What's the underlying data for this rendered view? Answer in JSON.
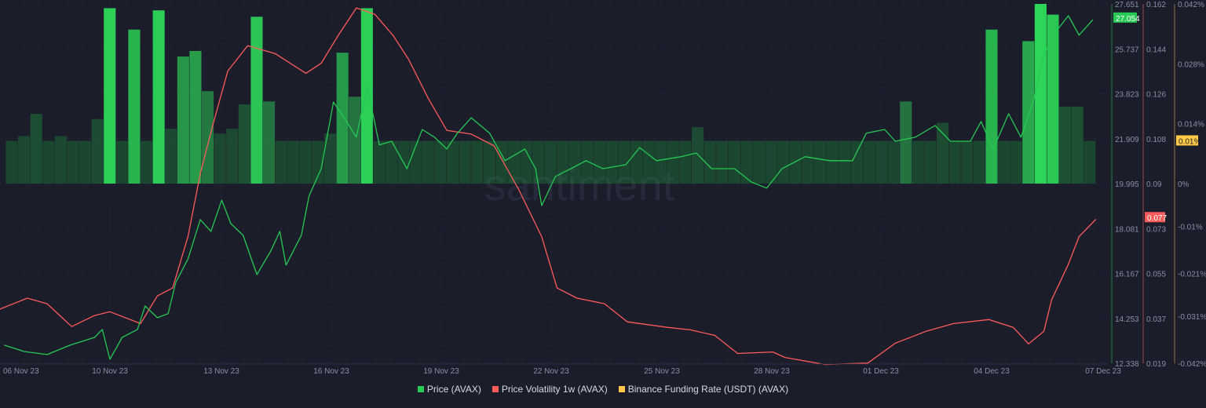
{
  "chart_data": {
    "type": "line",
    "title": "",
    "watermark": "santiment",
    "grid": true,
    "legend_placement": "bottom",
    "x_ticks": [
      "06 Nov 23",
      "10 Nov 23",
      "13 Nov 23",
      "16 Nov 23",
      "19 Nov 23",
      "22 Nov 23",
      "25 Nov 23",
      "28 Nov 23",
      "01 Dec 23",
      "04 Dec 23",
      "07 Dec 23"
    ],
    "axes": {
      "price": {
        "ticks": [
          "27.651",
          "25.737",
          "23.823",
          "21.909",
          "19.995",
          "18.081",
          "16.167",
          "14.253",
          "12.338"
        ],
        "range": [
          12.338,
          27.651
        ],
        "current_label": "27.054",
        "color": "#26c953"
      },
      "volatility": {
        "ticks": [
          "0.162",
          "0.144",
          "0.126",
          "0.108",
          "0.09",
          "0.073",
          "0.055",
          "0.037",
          "0.019"
        ],
        "range": [
          0.019,
          0.162
        ],
        "current_label": "0.077",
        "color": "#ff5b5b"
      },
      "funding": {
        "ticks": [
          [
            "0.042%",
            0.042
          ],
          [
            "0.028%",
            0.028
          ],
          [
            "0.014%",
            0.014
          ],
          [
            "0%",
            0
          ],
          [
            "-0.01%",
            -0.01
          ],
          [
            "-0.021%",
            -0.021
          ],
          [
            "-0.031%",
            -0.031
          ],
          [
            "-0.042%",
            -0.042
          ]
        ],
        "range": [
          -0.042,
          0.042
        ],
        "current_label": "0.01%",
        "color": "#ffcb47"
      }
    },
    "series": [
      {
        "name": "Price (AVAX)",
        "type": "line",
        "axis": "price",
        "color": "#26c953",
        "points": [
          [
            "2023-11-07T03:00",
            13.11
          ],
          [
            "2023-11-07T16:00",
            12.84
          ],
          [
            "2023-11-08T07:00",
            12.71
          ],
          [
            "2023-11-08T22:00",
            13.11
          ],
          [
            "2023-11-09T14:00",
            13.44
          ],
          [
            "2023-11-09T19:00",
            13.78
          ],
          [
            "2023-11-10T00:00",
            12.51
          ],
          [
            "2023-11-10T08:00",
            13.44
          ],
          [
            "2023-11-10T18:00",
            13.78
          ],
          [
            "2023-11-10T23:00",
            14.78
          ],
          [
            "2023-11-11T07:00",
            14.28
          ],
          [
            "2023-11-11T14:00",
            14.45
          ],
          [
            "2023-11-11T19:00",
            15.78
          ],
          [
            "2023-11-12T03:00",
            16.78
          ],
          [
            "2023-11-12T11:00",
            18.46
          ],
          [
            "2023-11-12T18:00",
            17.96
          ],
          [
            "2023-11-13T01:00",
            19.29
          ],
          [
            "2023-11-13T07:00",
            18.29
          ],
          [
            "2023-11-13T15:00",
            17.79
          ],
          [
            "2023-11-14T00:00",
            16.12
          ],
          [
            "2023-11-14T09:00",
            17.12
          ],
          [
            "2023-11-14T15:00",
            17.96
          ],
          [
            "2023-11-14T19:00",
            16.52
          ],
          [
            "2023-11-15T05:00",
            17.79
          ],
          [
            "2023-11-15T10:00",
            19.46
          ],
          [
            "2023-11-15T18:00",
            20.63
          ],
          [
            "2023-11-16T02:00",
            23.47
          ],
          [
            "2023-11-16T09:00",
            22.8
          ],
          [
            "2023-11-16T17:00",
            21.97
          ],
          [
            "2023-11-17T00:00",
            24.14
          ],
          [
            "2023-11-17T08:00",
            21.64
          ],
          [
            "2023-11-17T16:00",
            21.8
          ],
          [
            "2023-11-18T02:00",
            20.63
          ],
          [
            "2023-11-18T12:00",
            22.3
          ],
          [
            "2023-11-18T20:00",
            21.97
          ],
          [
            "2023-11-19T04:00",
            21.47
          ],
          [
            "2023-11-19T11:00",
            22.14
          ],
          [
            "2023-11-19T20:00",
            22.8
          ],
          [
            "2023-11-20T08:00",
            22.14
          ],
          [
            "2023-11-20T18:00",
            20.97
          ],
          [
            "2023-11-21T07:00",
            21.47
          ],
          [
            "2023-11-21T14:00",
            20.63
          ],
          [
            "2023-11-21T18:00",
            19.06
          ],
          [
            "2023-11-22T03:00",
            20.3
          ],
          [
            "2023-11-22T13:00",
            20.63
          ],
          [
            "2023-11-22T23:00",
            20.97
          ],
          [
            "2023-11-23T10:00",
            20.63
          ],
          [
            "2023-11-24T01:00",
            20.8
          ],
          [
            "2023-11-24T10:00",
            21.53
          ],
          [
            "2023-11-24T21:00",
            20.97
          ],
          [
            "2023-11-25T13:00",
            21.14
          ],
          [
            "2023-11-25T23:00",
            21.3
          ],
          [
            "2023-11-26T09:00",
            20.63
          ],
          [
            "2023-11-27T00:00",
            20.63
          ],
          [
            "2023-11-27T11:00",
            20.06
          ],
          [
            "2023-11-27T21:00",
            19.8
          ],
          [
            "2023-11-28T07:00",
            20.63
          ],
          [
            "2023-11-28T22:00",
            21.14
          ],
          [
            "2023-11-29T14:00",
            20.97
          ],
          [
            "2023-11-30T05:00",
            20.97
          ],
          [
            "2023-11-30T14:00",
            22.14
          ],
          [
            "2023-12-01T02:00",
            22.3
          ],
          [
            "2023-12-01T09:00",
            21.8
          ],
          [
            "2023-12-01T22:00",
            21.97
          ],
          [
            "2023-12-02T11:00",
            22.47
          ],
          [
            "2023-12-02T21:00",
            21.8
          ],
          [
            "2023-12-03T10:00",
            21.8
          ],
          [
            "2023-12-03T17:00",
            22.64
          ],
          [
            "2023-12-04T01:00",
            21.47
          ],
          [
            "2023-12-04T11:00",
            22.97
          ],
          [
            "2023-12-04T19:00",
            21.97
          ],
          [
            "2023-12-05T03:00",
            23.47
          ],
          [
            "2023-12-05T10:00",
            25.48
          ],
          [
            "2023-12-05T18:00",
            26.48
          ],
          [
            "2023-12-06T02:00",
            27.15
          ],
          [
            "2023-12-06T09:00",
            26.32
          ],
          [
            "2023-12-06T18:00",
            26.98
          ]
        ]
      },
      {
        "name": "Price Volatility 1w (AVAX)",
        "type": "line",
        "axis": "volatility",
        "color": "#ff5b5b",
        "points": [
          [
            "2023-11-07T00:00",
            0.0405
          ],
          [
            "2023-11-07T18:00",
            0.0449
          ],
          [
            "2023-11-08T07:00",
            0.0427
          ],
          [
            "2023-11-08T23:00",
            0.0336
          ],
          [
            "2023-11-09T14:00",
            0.038
          ],
          [
            "2023-11-10T00:00",
            0.0395
          ],
          [
            "2023-11-10T20:00",
            0.0348
          ],
          [
            "2023-11-11T07:00",
            0.0458
          ],
          [
            "2023-11-11T17:00",
            0.049
          ],
          [
            "2023-11-12T03:00",
            0.0694
          ],
          [
            "2023-11-12T11:00",
            0.0945
          ],
          [
            "2023-11-12T19:00",
            0.1133
          ],
          [
            "2023-11-13T05:00",
            0.1353
          ],
          [
            "2023-11-13T18:00",
            0.1454
          ],
          [
            "2023-11-14T12:00",
            0.1422
          ],
          [
            "2023-11-15T08:00",
            0.1344
          ],
          [
            "2023-11-15T18:00",
            0.1384
          ],
          [
            "2023-11-16T05:00",
            0.1494
          ],
          [
            "2023-11-16T17:00",
            0.1604
          ],
          [
            "2023-11-17T05:00",
            0.1579
          ],
          [
            "2023-11-17T17:00",
            0.1494
          ],
          [
            "2023-11-18T03:00",
            0.14
          ],
          [
            "2023-11-18T16:00",
            0.1243
          ],
          [
            "2023-11-19T04:00",
            0.1117
          ],
          [
            "2023-11-19T20:00",
            0.1102
          ],
          [
            "2023-11-20T11:00",
            0.1055
          ],
          [
            "2023-11-21T03:00",
            0.0882
          ],
          [
            "2023-11-21T18:00",
            0.0694
          ],
          [
            "2023-11-22T04:00",
            0.049
          ],
          [
            "2023-11-22T17:00",
            0.0449
          ],
          [
            "2023-11-23T11:00",
            0.0427
          ],
          [
            "2023-11-24T02:00",
            0.0355
          ],
          [
            "2023-11-25T04:00",
            0.0333
          ],
          [
            "2023-11-25T19:00",
            0.0323
          ],
          [
            "2023-11-26T11:00",
            0.0301
          ],
          [
            "2023-11-27T02:00",
            0.0229
          ],
          [
            "2023-11-28T01:00",
            0.0235
          ],
          [
            "2023-11-28T09:00",
            0.0213
          ],
          [
            "2023-11-29T11:00",
            0.0185
          ],
          [
            "2023-11-30T15:00",
            0.0191
          ],
          [
            "2023-12-01T09:00",
            0.027
          ],
          [
            "2023-12-02T05:00",
            0.0317
          ],
          [
            "2023-12-02T23:00",
            0.0348
          ],
          [
            "2023-12-03T22:00",
            0.0364
          ],
          [
            "2023-12-04T14:00",
            0.0333
          ],
          [
            "2023-12-05T00:00",
            0.0267
          ],
          [
            "2023-12-05T10:00",
            0.0317
          ],
          [
            "2023-12-05T15:00",
            0.0442
          ],
          [
            "2023-12-06T02:00",
            0.0584
          ],
          [
            "2023-12-06T09:00",
            0.0694
          ],
          [
            "2023-12-06T20:00",
            0.0763
          ]
        ]
      },
      {
        "name": "Binance Funding Rate (USDT) (AVAX)",
        "type": "bar",
        "axis": "funding",
        "color": "#26c953",
        "unit": "%",
        "start": "2023-11-07T08:00",
        "interval_hours": 8,
        "values": [
          0.01,
          0.0111,
          0.0163,
          0.01,
          0.0111,
          0.01,
          0.01,
          0.0151,
          0.041,
          0.01,
          0.036,
          0.01,
          0.0405,
          0.0128,
          0.0297,
          0.031,
          0.0216,
          0.0117,
          0.0128,
          0.0185,
          0.039,
          0.0192,
          0.01,
          0.01,
          0.01,
          0.01,
          0.0117,
          0.0306,
          0.0203,
          0.041,
          0.01,
          0.01,
          0.01,
          0.01,
          0.01,
          0.01,
          0.01,
          0.01,
          0.01,
          0.01,
          0.01,
          0.01,
          0.01,
          0.01,
          0.01,
          0.01,
          0.01,
          0.01,
          0.01,
          0.01,
          0.01,
          0.01,
          0.01,
          0.01,
          0.01,
          0.01,
          0.0132,
          0.01,
          0.01,
          0.01,
          0.01,
          0.01,
          0.01,
          0.01,
          0.01,
          0.01,
          0.01,
          0.01,
          0.01,
          0.01,
          0.01,
          0.01,
          0.01,
          0.0192,
          0.01,
          0.01,
          0.0142,
          0.01,
          0.01,
          0.01,
          0.036,
          0.01,
          0.01,
          0.0333,
          0.042,
          0.0395,
          0.018,
          0.018,
          0.01
        ]
      }
    ]
  }
}
